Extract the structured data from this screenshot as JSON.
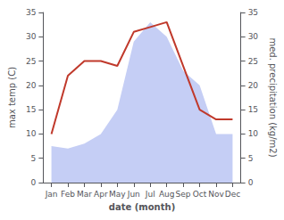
{
  "chart_data": {
    "type": "line",
    "categories": [
      "Jan",
      "Feb",
      "Mar",
      "Apr",
      "May",
      "Jun",
      "Jul",
      "Aug",
      "Sep",
      "Oct",
      "Nov",
      "Dec"
    ],
    "series": [
      {
        "type": "area",
        "color": "#c5cef5",
        "axis": "y2",
        "values": [
          7.5,
          7,
          8,
          10,
          15,
          29,
          33,
          30,
          23,
          20,
          10,
          10
        ]
      },
      {
        "type": "line",
        "color": "#c0392b",
        "values": [
          10,
          22,
          25,
          25,
          24,
          31,
          32,
          33,
          24,
          15,
          13,
          13
        ]
      }
    ],
    "xlabel": "date (month)",
    "ylabel": "max temp (C)",
    "y2label": "med. precipitation (kg/m2)",
    "ylim": [
      0,
      35
    ],
    "yticks": [
      0,
      5,
      10,
      15,
      20,
      25,
      30,
      35
    ],
    "y2lim": [
      0,
      35
    ],
    "y2ticks": [
      0,
      5,
      10,
      15,
      20,
      25,
      30,
      35
    ],
    "grid": false
  }
}
